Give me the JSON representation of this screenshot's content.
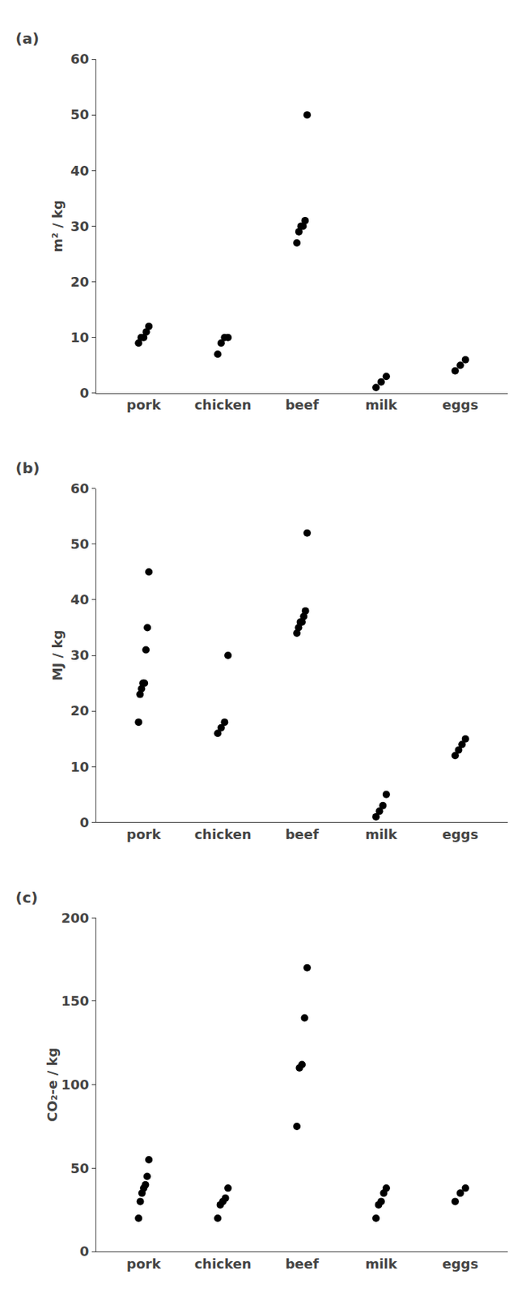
{
  "chart_data": [
    {
      "type": "scatter",
      "title": "(a)",
      "ylabel": "m² / kg",
      "categories": [
        "pork",
        "chicken",
        "beef",
        "milk",
        "eggs"
      ],
      "values": [
        [
          9,
          10,
          10,
          11,
          12
        ],
        [
          7,
          9,
          10,
          10
        ],
        [
          27,
          29,
          30,
          30,
          31,
          50
        ],
        [
          1,
          2,
          3
        ],
        [
          4,
          5,
          6
        ]
      ],
      "color": "#000000",
      "ylim": [
        0,
        60
      ],
      "yticks": [
        0,
        10,
        20,
        30,
        40,
        50,
        60
      ],
      "grid": false
    },
    {
      "type": "scatter",
      "title": "(b)",
      "ylabel": "MJ / kg",
      "categories": [
        "pork",
        "chicken",
        "beef",
        "milk",
        "eggs"
      ],
      "values": [
        [
          18,
          23,
          24,
          25,
          25,
          31,
          35,
          45
        ],
        [
          16,
          17,
          18,
          30
        ],
        [
          34,
          35,
          36,
          36,
          37,
          38,
          52
        ],
        [
          1,
          2,
          3,
          5
        ],
        [
          12,
          13,
          14,
          15
        ]
      ],
      "color": "#000000",
      "ylim": [
        0,
        60
      ],
      "yticks": [
        0,
        10,
        20,
        30,
        40,
        50,
        60
      ],
      "grid": false
    },
    {
      "type": "scatter",
      "title": "(c)",
      "ylabel": "CO₂-e / kg",
      "categories": [
        "pork",
        "chicken",
        "beef",
        "milk",
        "eggs"
      ],
      "values": [
        [
          20,
          30,
          35,
          38,
          40,
          45,
          55
        ],
        [
          20,
          28,
          30,
          32,
          38
        ],
        [
          75,
          110,
          112,
          140,
          170
        ],
        [
          20,
          28,
          30,
          35,
          38
        ],
        [
          30,
          35,
          38
        ]
      ],
      "color": "#000000",
      "ylim": [
        0,
        200
      ],
      "yticks": [
        0,
        50,
        100,
        150,
        200
      ],
      "grid": false
    }
  ]
}
